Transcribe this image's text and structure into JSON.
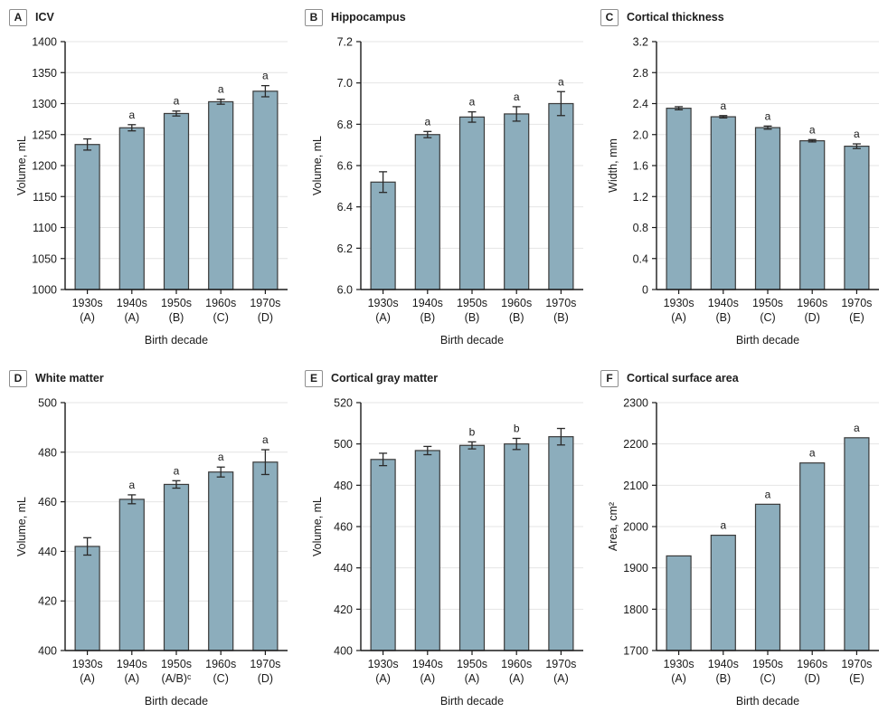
{
  "styles": {
    "bar_fill": "#8CADBC",
    "bar_stroke": "#3a3a3a",
    "grid_color": "#e4e4e4",
    "axis_color": "#1a1a1a",
    "error_color": "#2a2a2a",
    "text_color": "#1a1a1a"
  },
  "chart_data": [
    {
      "type": "bar",
      "panel_label": "A",
      "title": "ICV",
      "xlabel": "Birth decade",
      "ylabel": "Volume, mL",
      "categories": [
        "1930s",
        "1940s",
        "1950s",
        "1960s",
        "1970s"
      ],
      "category_groups": [
        "(A)",
        "(A)",
        "(B)",
        "(C)",
        "(D)"
      ],
      "values": [
        1234,
        1261,
        1284,
        1303,
        1320
      ],
      "errors": [
        9,
        5,
        4,
        4,
        9
      ],
      "sig_labels": [
        "",
        "a",
        "a",
        "a",
        "a"
      ],
      "ylim": [
        1000,
        1400
      ],
      "yticks": [
        "1000",
        "1050",
        "1100",
        "1150",
        "1200",
        "1250",
        "1300",
        "1350",
        "1400"
      ],
      "grid": true,
      "legend": "none"
    },
    {
      "type": "bar",
      "panel_label": "B",
      "title": "Hippocampus",
      "xlabel": "Birth decade",
      "ylabel": "Volume, mL",
      "categories": [
        "1930s",
        "1940s",
        "1950s",
        "1960s",
        "1970s"
      ],
      "category_groups": [
        "(A)",
        "(B)",
        "(B)",
        "(B)",
        "(B)"
      ],
      "values": [
        6.52,
        6.75,
        6.835,
        6.85,
        6.9
      ],
      "errors": [
        0.05,
        0.015,
        0.025,
        0.035,
        0.058
      ],
      "sig_labels": [
        "",
        "a",
        "a",
        "a",
        "a"
      ],
      "ylim": [
        6.0,
        7.2
      ],
      "yticks": [
        "6.0",
        "6.2",
        "6.4",
        "6.6",
        "6.8",
        "7.0",
        "7.2"
      ],
      "grid": true,
      "legend": "none"
    },
    {
      "type": "bar",
      "panel_label": "C",
      "title": "Cortical thickness",
      "xlabel": "Birth decade",
      "ylabel": "Width, mm",
      "categories": [
        "1930s",
        "1940s",
        "1950s",
        "1960s",
        "1970s"
      ],
      "category_groups": [
        "(A)",
        "(B)",
        "(C)",
        "(D)",
        "(E)"
      ],
      "values": [
        2.34,
        2.23,
        2.09,
        1.92,
        1.85
      ],
      "errors": [
        0.02,
        0.015,
        0.02,
        0.015,
        0.03
      ],
      "sig_labels": [
        "",
        "a",
        "a",
        "a",
        "a"
      ],
      "ylim": [
        0,
        3.2
      ],
      "yticks": [
        "0",
        "0.4",
        "0.8",
        "1.2",
        "1.6",
        "2.0",
        "2.4",
        "2.8",
        "3.2"
      ],
      "grid": true,
      "legend": "none"
    },
    {
      "type": "bar",
      "panel_label": "D",
      "title": "White matter",
      "xlabel": "Birth decade",
      "ylabel": "Volume, mL",
      "categories": [
        "1930s",
        "1940s",
        "1950s",
        "1960s",
        "1970s"
      ],
      "category_groups": [
        "(A)",
        "(A)",
        "(A/B)ᶜ",
        "(C)",
        "(D)"
      ],
      "values": [
        442,
        461,
        467,
        472,
        476
      ],
      "errors": [
        3.5,
        1.8,
        1.5,
        2,
        5
      ],
      "sig_labels": [
        "",
        "a",
        "a",
        "a",
        "a"
      ],
      "ylim": [
        400,
        500
      ],
      "yticks": [
        "400",
        "420",
        "440",
        "460",
        "480",
        "500"
      ],
      "grid": true,
      "legend": "none"
    },
    {
      "type": "bar",
      "panel_label": "E",
      "title": "Cortical gray matter",
      "xlabel": "Birth decade",
      "ylabel": "Volume, mL",
      "categories": [
        "1930s",
        "1940s",
        "1950s",
        "1960s",
        "1970s"
      ],
      "category_groups": [
        "(A)",
        "(A)",
        "(A)",
        "(A)",
        "(A)"
      ],
      "values": [
        492.5,
        496.8,
        499.3,
        500,
        503.5
      ],
      "errors": [
        3,
        2,
        1.7,
        2.7,
        4
      ],
      "sig_labels": [
        "",
        "",
        "b",
        "b",
        ""
      ],
      "ylim": [
        400,
        520
      ],
      "yticks": [
        "400",
        "420",
        "440",
        "460",
        "480",
        "500",
        "520"
      ],
      "grid": true,
      "legend": "none"
    },
    {
      "type": "bar",
      "panel_label": "F",
      "title": "Cortical surface area",
      "xlabel": "Birth decade",
      "ylabel": "Area, cm²",
      "categories": [
        "1930s",
        "1940s",
        "1950s",
        "1960s",
        "1970s"
      ],
      "category_groups": [
        "(A)",
        "(B)",
        "(C)",
        "(D)",
        "(E)"
      ],
      "values": [
        1929,
        1979,
        2054,
        2154,
        2215
      ],
      "errors": [
        0,
        0,
        0,
        0,
        0
      ],
      "sig_labels": [
        "",
        "a",
        "a",
        "a",
        "a"
      ],
      "ylim": [
        1700,
        2300
      ],
      "yticks": [
        "1700",
        "1800",
        "1900",
        "2000",
        "2100",
        "2200",
        "2300"
      ],
      "grid": true,
      "legend": "none"
    }
  ]
}
